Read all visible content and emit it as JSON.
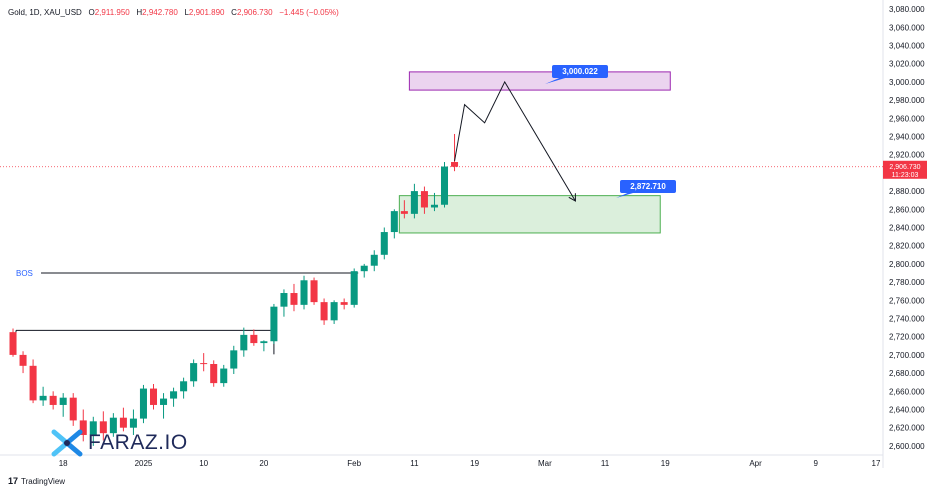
{
  "legend": {
    "symbol": "Gold, 1D, XAU_USD",
    "open_key": "O",
    "open": "2,911.950",
    "high_key": "H",
    "high": "2,942.780",
    "low_key": "L",
    "low": "2,901.890",
    "close_key": "C",
    "close": "2,906.730",
    "change": "−1.445 (−0.05%)"
  },
  "price_tag": {
    "price": "2,906.730",
    "countdown": "11:23:03"
  },
  "bos_label": "BOS",
  "callouts": {
    "upper": "3,000.022",
    "lower": "2,872.710"
  },
  "watermark": "FARAZ.IO",
  "footer": "TradingView",
  "colors": {
    "up": "#089981",
    "down": "#f23645",
    "supply_zone": "#9c27b0",
    "demand_zone": "#4caf50",
    "callout": "#2962ff"
  },
  "chart_data": {
    "type": "candlestick",
    "symbol": "XAU_USD",
    "timeframe": "1D",
    "y_axis": {
      "range": [
        2590,
        3090
      ],
      "ticks": [
        "2,600.000",
        "2,620.000",
        "2,640.000",
        "2,660.000",
        "2,680.000",
        "2,700.000",
        "2,720.000",
        "2,740.000",
        "2,760.000",
        "2,780.000",
        "2,800.000",
        "2,820.000",
        "2,840.000",
        "2,860.000",
        "2,880.000",
        "2,900.000",
        "2,920.000",
        "2,940.000",
        "2,960.000",
        "2,980.000",
        "3,000.000",
        "3,020.000",
        "3,040.000",
        "3,060.000",
        "3,080.000"
      ]
    },
    "x_axis": {
      "labels": [
        {
          "label": "18",
          "index": 5
        },
        {
          "label": "2025",
          "index": 13
        },
        {
          "label": "10",
          "index": 19
        },
        {
          "label": "20",
          "index": 25
        },
        {
          "label": "Feb",
          "index": 34
        },
        {
          "label": "11",
          "index": 40
        },
        {
          "label": "19",
          "index": 46
        },
        {
          "label": "Mar",
          "index": 53
        },
        {
          "label": "11",
          "index": 59
        },
        {
          "label": "19",
          "index": 65
        },
        {
          "label": "Apr",
          "index": 74
        },
        {
          "label": "9",
          "index": 80
        },
        {
          "label": "17",
          "index": 86
        }
      ],
      "range": [
        -0.5,
        86.5
      ]
    },
    "candles": [
      [
        2725,
        2729,
        2698,
        2700
      ],
      [
        2700,
        2704,
        2680,
        2688
      ],
      [
        2688,
        2695,
        2647,
        2650
      ],
      [
        2650,
        2665,
        2644,
        2655
      ],
      [
        2655,
        2660,
        2640,
        2645
      ],
      [
        2645,
        2658,
        2632,
        2653
      ],
      [
        2653,
        2658,
        2622,
        2628
      ],
      [
        2628,
        2640,
        2605,
        2612
      ],
      [
        2612,
        2632,
        2600,
        2627
      ],
      [
        2627,
        2638,
        2606,
        2614
      ],
      [
        2614,
        2636,
        2610,
        2631
      ],
      [
        2631,
        2642,
        2616,
        2620
      ],
      [
        2620,
        2640,
        2612,
        2630
      ],
      [
        2630,
        2667,
        2625,
        2663
      ],
      [
        2663,
        2668,
        2640,
        2645
      ],
      [
        2645,
        2658,
        2630,
        2652
      ],
      [
        2652,
        2664,
        2643,
        2660
      ],
      [
        2660,
        2675,
        2652,
        2671
      ],
      [
        2671,
        2695,
        2665,
        2691
      ],
      [
        2691,
        2702,
        2682,
        2690
      ],
      [
        2690,
        2694,
        2665,
        2669
      ],
      [
        2669,
        2689,
        2665,
        2685
      ],
      [
        2685,
        2710,
        2679,
        2705
      ],
      [
        2705,
        2730,
        2698,
        2722
      ],
      [
        2722,
        2728,
        2710,
        2713
      ],
      [
        2713,
        2716,
        2704,
        2715
      ],
      [
        2715,
        2756,
        2712,
        2753
      ],
      [
        2753,
        2772,
        2742,
        2768
      ],
      [
        2768,
        2778,
        2748,
        2755
      ],
      [
        2755,
        2787,
        2750,
        2782
      ],
      [
        2782,
        2785,
        2755,
        2758
      ],
      [
        2758,
        2762,
        2733,
        2738
      ],
      [
        2738,
        2760,
        2734,
        2758
      ],
      [
        2758,
        2762,
        2750,
        2755
      ],
      [
        2755,
        2795,
        2752,
        2792
      ],
      [
        2792,
        2800,
        2785,
        2798
      ],
      [
        2798,
        2815,
        2792,
        2810
      ],
      [
        2810,
        2840,
        2805,
        2835
      ],
      [
        2835,
        2860,
        2828,
        2858
      ],
      [
        2858,
        2870,
        2850,
        2855
      ],
      [
        2855,
        2888,
        2850,
        2880
      ],
      [
        2880,
        2885,
        2855,
        2862
      ],
      [
        2862,
        2878,
        2858,
        2865
      ],
      [
        2865,
        2912,
        2862,
        2907
      ],
      [
        2911.95,
        2942.78,
        2901.89,
        2906.73
      ]
    ],
    "current_price": 2906.73,
    "levels": [
      {
        "name": "BOS",
        "y": 2790,
        "x_start": 0,
        "x_end": 34
      },
      {
        "name": "swing",
        "y": 2727,
        "x_start": 0,
        "x_end": 26
      }
    ],
    "zones": [
      {
        "name": "supply",
        "x_start": 40,
        "x_end": 65,
        "y_low": 2991,
        "y_high": 3011
      },
      {
        "name": "demand",
        "x_start": 39,
        "x_end": 64,
        "y_low": 2834,
        "y_high": 2875
      }
    ],
    "projection": [
      [
        44,
        2913
      ],
      [
        45,
        2975
      ],
      [
        47,
        2955
      ],
      [
        49,
        3000
      ],
      [
        56,
        2870
      ]
    ],
    "callouts": [
      {
        "label": "3,000.022",
        "y": 3000.022
      },
      {
        "label": "2,872.710",
        "y": 2872.71
      }
    ]
  }
}
